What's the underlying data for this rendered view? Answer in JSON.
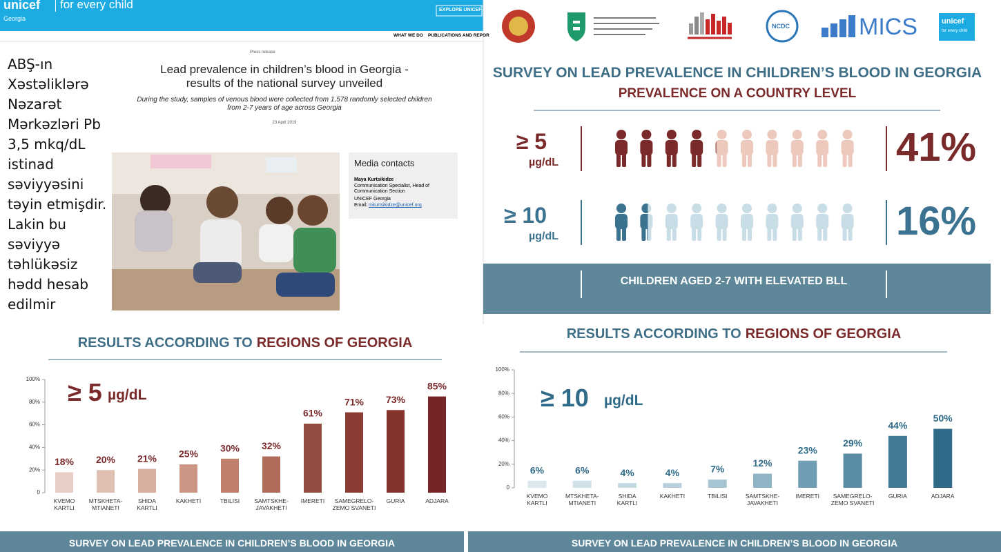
{
  "header": {
    "logo": "unicef",
    "tagline": "for every child",
    "country": "Georgia",
    "button": "EXPLORE UNICEF",
    "nav": [
      "WHAT WE DO",
      "PUBLICATIONS AND REPOR"
    ]
  },
  "side_note": "ABŞ-ın Xəstəliklərə Nəzarət Mərkəzləri Pb 3,5 mkq/dL istinad səviyyəsini təyin etmişdir. Lakin bu səviyyə təhlükəsiz hədd hesab edilmir",
  "article": {
    "label": "Press release",
    "title": "Lead prevalence in children’s blood in Georgia - results of the national survey unveiled",
    "subtitle": "During the study, samples of venous blood were collected from 1,578 randomly selected children from 2-7 years of age across Georgia",
    "date": "23 April 2019",
    "contacts": {
      "heading": "Media contacts",
      "name": "Maya Kurtsikidze",
      "role": "Communication Specialist, Head of Communication Section",
      "org": "UNICEF Georgia",
      "email_label": "Email:",
      "email": "mkurtsikidze@unicef.org"
    }
  },
  "logos": {
    "ncdc": "NCDC",
    "mics": "MICS",
    "unicef": "unicef",
    "unicef_tagline": "for every child"
  },
  "infographic": {
    "title": "SURVEY ON LEAD PREVALENCE IN CHILDREN’S BLOOD IN GEORGIA",
    "subtitle": "PREVALENCE ON A COUNTRY LEVEL",
    "rows": [
      {
        "threshold": "≥ 5",
        "unit": "µg/dL",
        "value": 41,
        "value_label": "41%",
        "color": "#7a2a2a",
        "light": "#ecc9bc"
      },
      {
        "threshold": "≥ 10",
        "unit": "µg/dL",
        "value": 16,
        "value_label": "16%",
        "color": "#3b7290",
        "light": "#c9dde6"
      }
    ],
    "banner": "CHILDREN AGED 2-7 WITH ELEVATED BLL"
  },
  "chart_data": [
    {
      "type": "bar",
      "title": [
        "RESULTS ACCORDING TO",
        "REGIONS OF GEORGIA"
      ],
      "annotation": {
        "threshold": "≥ 5",
        "unit": "µg/dL"
      },
      "annotation_color": "#7a2a2a",
      "categories": [
        "KVEMO\nKARTLI",
        "MTSKHETA-\nMTIANETI",
        "SHIDA\nKARTLI",
        "KAKHETI",
        "TBILISI",
        "SAMTSKHE-\nJAVAKHETI",
        "IMERETI",
        "SAMEGRELO-\nZEMO SVANETI",
        "GURIA",
        "ADJARA"
      ],
      "values": [
        18,
        20,
        21,
        25,
        30,
        32,
        61,
        71,
        73,
        85
      ],
      "value_labels": [
        "18%",
        "20%",
        "21%",
        "25%",
        "30%",
        "32%",
        "61%",
        "71%",
        "73%",
        "85%"
      ],
      "colors": [
        "#e8cfc6",
        "#e0bfb3",
        "#d7aea0",
        "#cc9684",
        "#bf7f6b",
        "#b06c58",
        "#954c40",
        "#8b3d34",
        "#84332c",
        "#772428"
      ],
      "ylim": [
        0,
        100
      ],
      "yticks": [
        0,
        {
          "value": 20,
          "label": "20%"
        },
        {
          "value": 40,
          "label": "40%"
        },
        {
          "value": 60,
          "label": "60%"
        },
        {
          "value": 80,
          "label": "80%"
        },
        {
          "value": 100,
          "label": "100%"
        }
      ]
    },
    {
      "type": "bar",
      "title": [
        "RESULTS ACCORDING TO",
        "REGIONS OF GEORGIA"
      ],
      "annotation": {
        "threshold": "≥ 10",
        "unit": "µg/dL"
      },
      "annotation_color": "#2f6a88",
      "categories": [
        "KVEMO\nKARTLI",
        "MTSKHETA-\nMTIANETI",
        "SHIDA\nKARTLI",
        "KAKHETI",
        "TBILISI",
        "SAMTSKHE-\nJAVAKHETI",
        "IMERETI",
        "SAMEGRELO-\nZEMO SVANETI",
        "GURIA",
        "ADJARA"
      ],
      "values": [
        6,
        6,
        4,
        4,
        7,
        12,
        23,
        29,
        44,
        50
      ],
      "value_labels": [
        "6%",
        "6%",
        "4%",
        "4%",
        "7%",
        "12%",
        "23%",
        "29%",
        "44%",
        "50%"
      ],
      "colors": [
        "#dbe8ee",
        "#d0e1e8",
        "#c4d9e2",
        "#b7d0db",
        "#a6c4d2",
        "#8fb4c6",
        "#6f9db3",
        "#5a8ca5",
        "#427a97",
        "#2f6a88"
      ],
      "ylim": [
        0,
        100
      ],
      "yticks": [
        0,
        {
          "value": 20,
          "label": "20%"
        },
        {
          "value": 40,
          "label": "40%"
        },
        {
          "value": 60,
          "label": "60%"
        },
        {
          "value": 80,
          "label": "80%"
        },
        {
          "value": 100,
          "label": "100%"
        }
      ]
    }
  ],
  "footer": [
    "SURVEY ON LEAD PREVALENCE IN CHILDREN’S BLOOD IN GEORGIA",
    "SURVEY ON LEAD PREVALENCE IN CHILDREN’S BLOOD IN GEORGIA"
  ]
}
